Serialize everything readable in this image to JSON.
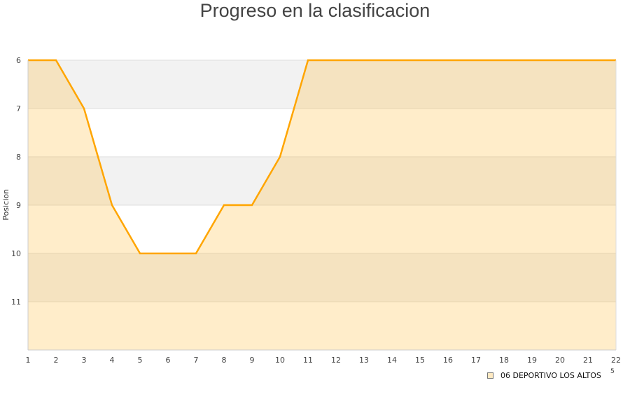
{
  "chart_data": {
    "type": "area",
    "title": "Progreso en la clasificacion",
    "xlabel": "",
    "ylabel": "Posicion",
    "x": [
      1,
      2,
      3,
      4,
      5,
      6,
      7,
      8,
      9,
      10,
      11,
      12,
      13,
      14,
      15,
      16,
      17,
      18,
      19,
      20,
      21,
      22
    ],
    "series": [
      {
        "name": "06 DEPORTIVO LOS ALTOS",
        "values": [
          6,
          6,
          7,
          9,
          10,
          10,
          10,
          9,
          9,
          8,
          6,
          6,
          6,
          6,
          6,
          6,
          6,
          6,
          6,
          6,
          6,
          6
        ]
      }
    ],
    "xlim": [
      1,
      22
    ],
    "ylim": [
      6,
      12
    ],
    "y_inverted": true,
    "yticks": [
      6,
      7,
      8,
      9,
      10,
      11
    ],
    "grid": true,
    "legend": "bottom-right",
    "colors": {
      "line": "#ffa500",
      "fill": "#ffe9c2",
      "band": "#f2f2f2"
    }
  },
  "legend_extra": "5"
}
